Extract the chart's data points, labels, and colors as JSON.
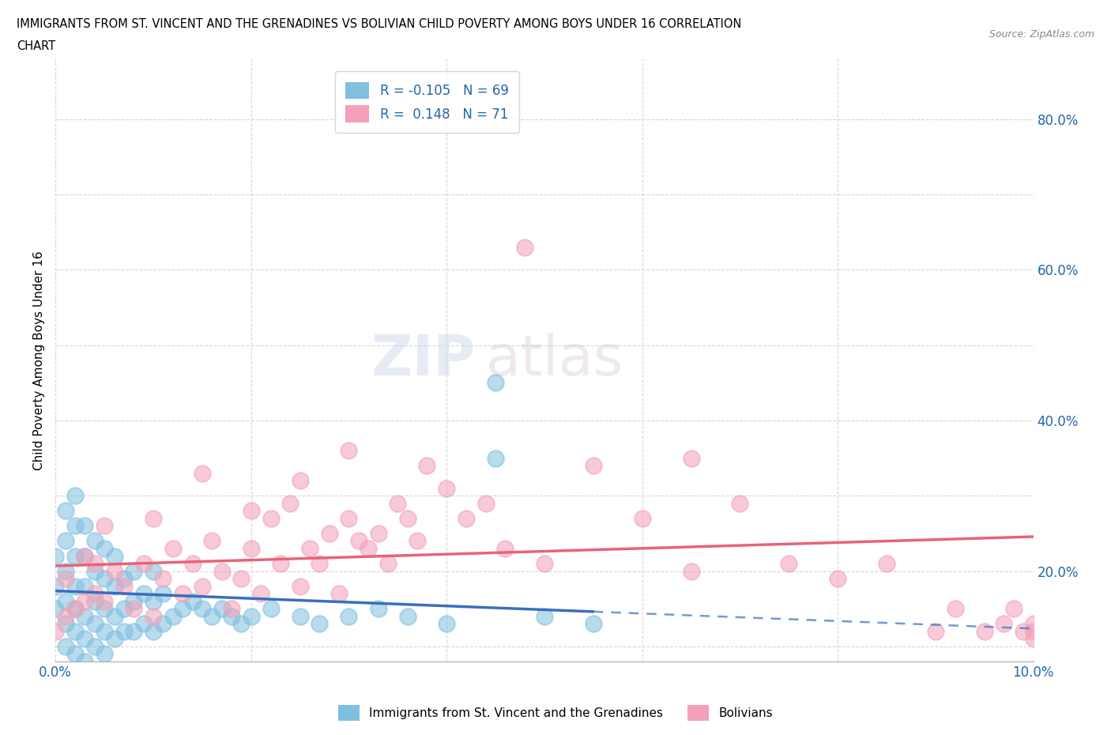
{
  "title_line1": "IMMIGRANTS FROM ST. VINCENT AND THE GRENADINES VS BOLIVIAN CHILD POVERTY AMONG BOYS UNDER 16 CORRELATION",
  "title_line2": "CHART",
  "source": "Source: ZipAtlas.com",
  "ylabel": "Child Poverty Among Boys Under 16",
  "xlim": [
    0.0,
    0.1
  ],
  "ylim": [
    0.08,
    0.88
  ],
  "color_blue": "#7fbfdf",
  "color_pink": "#f4a0b8",
  "trendline_blue": "#3a6ebd",
  "trendline_pink": "#e8637a",
  "R_blue": -0.105,
  "N_blue": 69,
  "R_pink": 0.148,
  "N_pink": 71,
  "legend_label_blue": "Immigrants from St. Vincent and the Grenadines",
  "legend_label_pink": "Bolivians",
  "watermark_zip": "ZIP",
  "watermark_atlas": "atlas",
  "blue_scatter_x": [
    0.0,
    0.0,
    0.0,
    0.001,
    0.001,
    0.001,
    0.001,
    0.001,
    0.001,
    0.002,
    0.002,
    0.002,
    0.002,
    0.002,
    0.002,
    0.002,
    0.003,
    0.003,
    0.003,
    0.003,
    0.003,
    0.003,
    0.004,
    0.004,
    0.004,
    0.004,
    0.004,
    0.005,
    0.005,
    0.005,
    0.005,
    0.005,
    0.006,
    0.006,
    0.006,
    0.006,
    0.007,
    0.007,
    0.007,
    0.008,
    0.008,
    0.008,
    0.009,
    0.009,
    0.01,
    0.01,
    0.01,
    0.011,
    0.011,
    0.012,
    0.013,
    0.014,
    0.015,
    0.016,
    0.017,
    0.018,
    0.019,
    0.02,
    0.022,
    0.025,
    0.027,
    0.03,
    0.033,
    0.036,
    0.04,
    0.045,
    0.05,
    0.055,
    0.045
  ],
  "blue_scatter_y": [
    0.15,
    0.18,
    0.22,
    0.1,
    0.13,
    0.16,
    0.2,
    0.24,
    0.28,
    0.09,
    0.12,
    0.15,
    0.18,
    0.22,
    0.26,
    0.3,
    0.08,
    0.11,
    0.14,
    0.18,
    0.22,
    0.26,
    0.1,
    0.13,
    0.16,
    0.2,
    0.24,
    0.09,
    0.12,
    0.15,
    0.19,
    0.23,
    0.11,
    0.14,
    0.18,
    0.22,
    0.12,
    0.15,
    0.19,
    0.12,
    0.16,
    0.2,
    0.13,
    0.17,
    0.12,
    0.16,
    0.2,
    0.13,
    0.17,
    0.14,
    0.15,
    0.16,
    0.15,
    0.14,
    0.15,
    0.14,
    0.13,
    0.14,
    0.15,
    0.14,
    0.13,
    0.14,
    0.15,
    0.14,
    0.13,
    0.35,
    0.14,
    0.13,
    0.45
  ],
  "pink_scatter_x": [
    0.0,
    0.001,
    0.002,
    0.003,
    0.004,
    0.004,
    0.005,
    0.006,
    0.007,
    0.008,
    0.009,
    0.01,
    0.011,
    0.012,
    0.013,
    0.014,
    0.015,
    0.016,
    0.017,
    0.018,
    0.019,
    0.02,
    0.021,
    0.022,
    0.023,
    0.024,
    0.025,
    0.026,
    0.027,
    0.028,
    0.029,
    0.03,
    0.031,
    0.032,
    0.033,
    0.034,
    0.035,
    0.036,
    0.037,
    0.038,
    0.04,
    0.042,
    0.044,
    0.046,
    0.048,
    0.05,
    0.055,
    0.06,
    0.065,
    0.07,
    0.075,
    0.08,
    0.085,
    0.09,
    0.092,
    0.095,
    0.097,
    0.098,
    0.099,
    0.1,
    0.1,
    0.1,
    0.065,
    0.03,
    0.025,
    0.02,
    0.015,
    0.01,
    0.005,
    0.003,
    0.001
  ],
  "pink_scatter_y": [
    0.12,
    0.14,
    0.15,
    0.16,
    0.17,
    0.21,
    0.16,
    0.2,
    0.18,
    0.15,
    0.21,
    0.14,
    0.19,
    0.23,
    0.17,
    0.21,
    0.18,
    0.24,
    0.2,
    0.15,
    0.19,
    0.23,
    0.17,
    0.27,
    0.21,
    0.29,
    0.18,
    0.23,
    0.21,
    0.25,
    0.17,
    0.27,
    0.24,
    0.23,
    0.25,
    0.21,
    0.29,
    0.27,
    0.24,
    0.34,
    0.31,
    0.27,
    0.29,
    0.23,
    0.63,
    0.21,
    0.34,
    0.27,
    0.2,
    0.29,
    0.21,
    0.19,
    0.21,
    0.12,
    0.15,
    0.12,
    0.13,
    0.15,
    0.12,
    0.13,
    0.12,
    0.11,
    0.35,
    0.36,
    0.32,
    0.28,
    0.33,
    0.27,
    0.26,
    0.22,
    0.19
  ]
}
